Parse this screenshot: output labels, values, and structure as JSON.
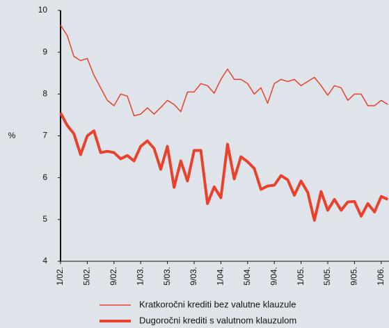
{
  "chart_data": {
    "type": "line",
    "y_label": "%",
    "categories": [
      "1/02.",
      null,
      null,
      null,
      "5/02.",
      null,
      null,
      null,
      "9/02.",
      null,
      null,
      null,
      "1/03.",
      null,
      null,
      null,
      "5/03.",
      null,
      null,
      null,
      "9/03.",
      null,
      null,
      null,
      "1/04.",
      null,
      null,
      null,
      "5/04.",
      null,
      null,
      null,
      "9/04.",
      null,
      null,
      null,
      "1/05.",
      null,
      null,
      null,
      "5/05.",
      null,
      null,
      null,
      "9/05.",
      null,
      null,
      null,
      "1/06.",
      null
    ],
    "series": [
      {
        "name": "Kratkoročni krediti bez valutne klauzule",
        "color": "#e8412c",
        "width": 1.5,
        "values": [
          9.65,
          9.4,
          8.9,
          8.8,
          8.85,
          8.45,
          8.15,
          7.85,
          7.72,
          8.0,
          7.95,
          7.48,
          7.52,
          7.67,
          7.52,
          7.68,
          7.85,
          7.75,
          7.58,
          8.05,
          8.05,
          8.25,
          8.2,
          8.02,
          8.35,
          8.6,
          8.35,
          8.35,
          8.25,
          8.0,
          8.15,
          7.78,
          8.25,
          8.35,
          8.3,
          8.35,
          8.2,
          8.3,
          8.4,
          8.2,
          7.97,
          8.2,
          8.15,
          7.85,
          8.0,
          8.0,
          7.72,
          7.72,
          7.85,
          7.75
        ]
      },
      {
        "name": "Dugoročni krediti s valutnom klauzulom",
        "color": "#e8412c",
        "width": 4,
        "values": [
          7.55,
          7.25,
          7.05,
          6.55,
          7.0,
          7.12,
          6.6,
          6.63,
          6.6,
          6.45,
          6.53,
          6.4,
          6.75,
          6.88,
          6.7,
          6.2,
          6.75,
          5.77,
          6.4,
          5.92,
          6.65,
          6.65,
          5.38,
          5.78,
          5.52,
          6.8,
          5.97,
          6.5,
          6.38,
          6.22,
          5.72,
          5.8,
          5.82,
          6.05,
          5.95,
          5.58,
          5.92,
          5.65,
          4.98,
          5.67,
          5.22,
          5.48,
          5.22,
          5.42,
          5.43,
          5.08,
          5.38,
          5.18,
          5.55,
          5.48
        ]
      }
    ],
    "ylim": [
      4,
      10
    ],
    "yticks": [
      4,
      5,
      6,
      7,
      8,
      9,
      10
    ]
  }
}
